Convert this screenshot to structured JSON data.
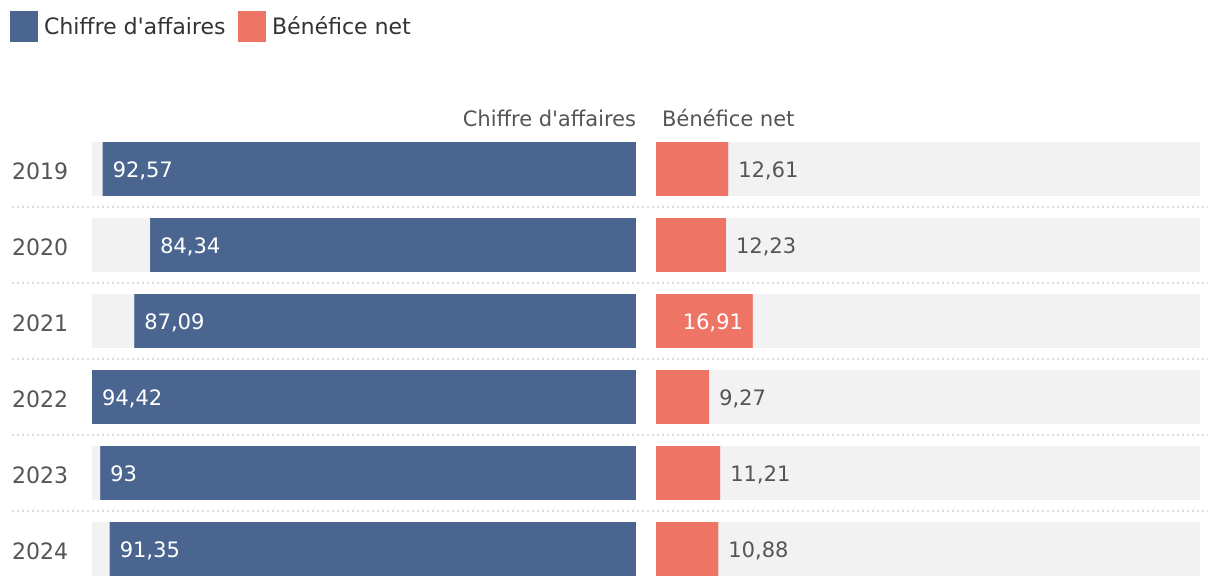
{
  "colors": {
    "revenue": "#4a6590",
    "profit": "#ee7466",
    "track": "#f2f2f2",
    "separator": "#c8c8c8",
    "label_inside": "#ffffff",
    "label_outside": "#555555"
  },
  "chart_data": {
    "type": "bar",
    "orientation": "horizontal",
    "layout": "butterfly",
    "legend": {
      "placement": "top-left",
      "items": [
        {
          "label": "Chiffre d'affaires",
          "color_key": "revenue"
        },
        {
          "label": "Bénéfice net",
          "color_key": "profit"
        }
      ]
    },
    "column_headers": [
      "Chiffre d'affaires",
      "Bénéfice net"
    ],
    "categories": [
      "2019",
      "2020",
      "2021",
      "2022",
      "2023",
      "2024"
    ],
    "series": [
      {
        "name": "Chiffre d'affaires",
        "values": [
          92.57,
          84.34,
          87.09,
          94.42,
          93,
          91.35
        ],
        "labels": [
          "92,57",
          "84,34",
          "87,09",
          "94,42",
          "93",
          "91,35"
        ],
        "range": [
          0,
          94.42
        ],
        "direction": "right-to-left"
      },
      {
        "name": "Bénéfice net",
        "values": [
          12.61,
          12.23,
          16.91,
          9.27,
          11.21,
          10.88
        ],
        "labels": [
          "12,61",
          "12,23",
          "16,91",
          "9,27",
          "11,21",
          "10,88"
        ],
        "range": [
          0,
          95
        ],
        "direction": "left-to-right"
      }
    ],
    "grid": false,
    "row_separators": "dotted"
  }
}
